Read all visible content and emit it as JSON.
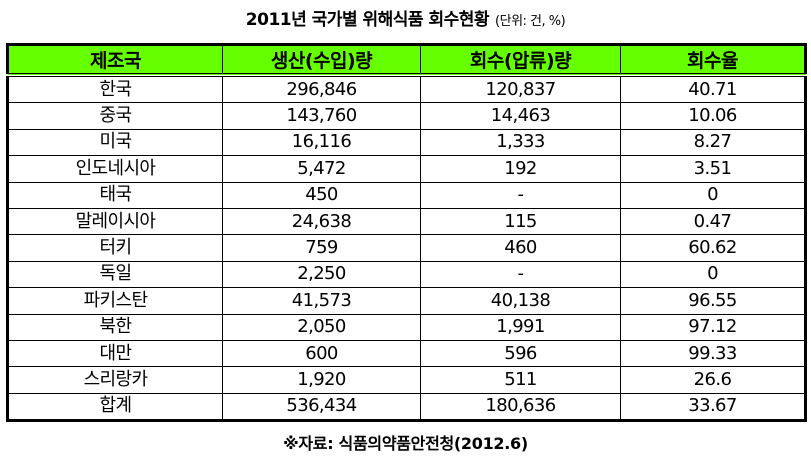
{
  "title": {
    "text": "2011년 국가별 위해식품 회수현황",
    "unit": "(단위: 건, %)"
  },
  "table": {
    "header_color": "#66ff00",
    "columns": [
      "제조국",
      "생산(수입)량",
      "회수(압류)량",
      "회수율"
    ],
    "rows": [
      {
        "country": "한국",
        "production": "296,846",
        "recalled": "120,837",
        "rate": "40.71"
      },
      {
        "country": "중국",
        "production": "143,760",
        "recalled": "14,463",
        "rate": "10.06"
      },
      {
        "country": "미국",
        "production": "16,116",
        "recalled": "1,333",
        "rate": "8.27"
      },
      {
        "country": "인도네시아",
        "production": "5,472",
        "recalled": "192",
        "rate": "3.51"
      },
      {
        "country": "태국",
        "production": "450",
        "recalled": "-",
        "rate": "0"
      },
      {
        "country": "말레이시아",
        "production": "24,638",
        "recalled": "115",
        "rate": "0.47"
      },
      {
        "country": "터키",
        "production": "759",
        "recalled": "460",
        "rate": "60.62"
      },
      {
        "country": "독일",
        "production": "2,250",
        "recalled": "-",
        "rate": "0"
      },
      {
        "country": "파키스탄",
        "production": "41,573",
        "recalled": "40,138",
        "rate": "96.55"
      },
      {
        "country": "북한",
        "production": "2,050",
        "recalled": "1,991",
        "rate": "97.12"
      },
      {
        "country": "대만",
        "production": "600",
        "recalled": "596",
        "rate": "99.33"
      },
      {
        "country": "스리랑카",
        "production": "1,920",
        "recalled": "511",
        "rate": "26.6"
      },
      {
        "country": "합계",
        "production": "536,434",
        "recalled": "180,636",
        "rate": "33.67"
      }
    ]
  },
  "footer": {
    "source": "※자료: 식품의약품안전청(2012.6)"
  }
}
